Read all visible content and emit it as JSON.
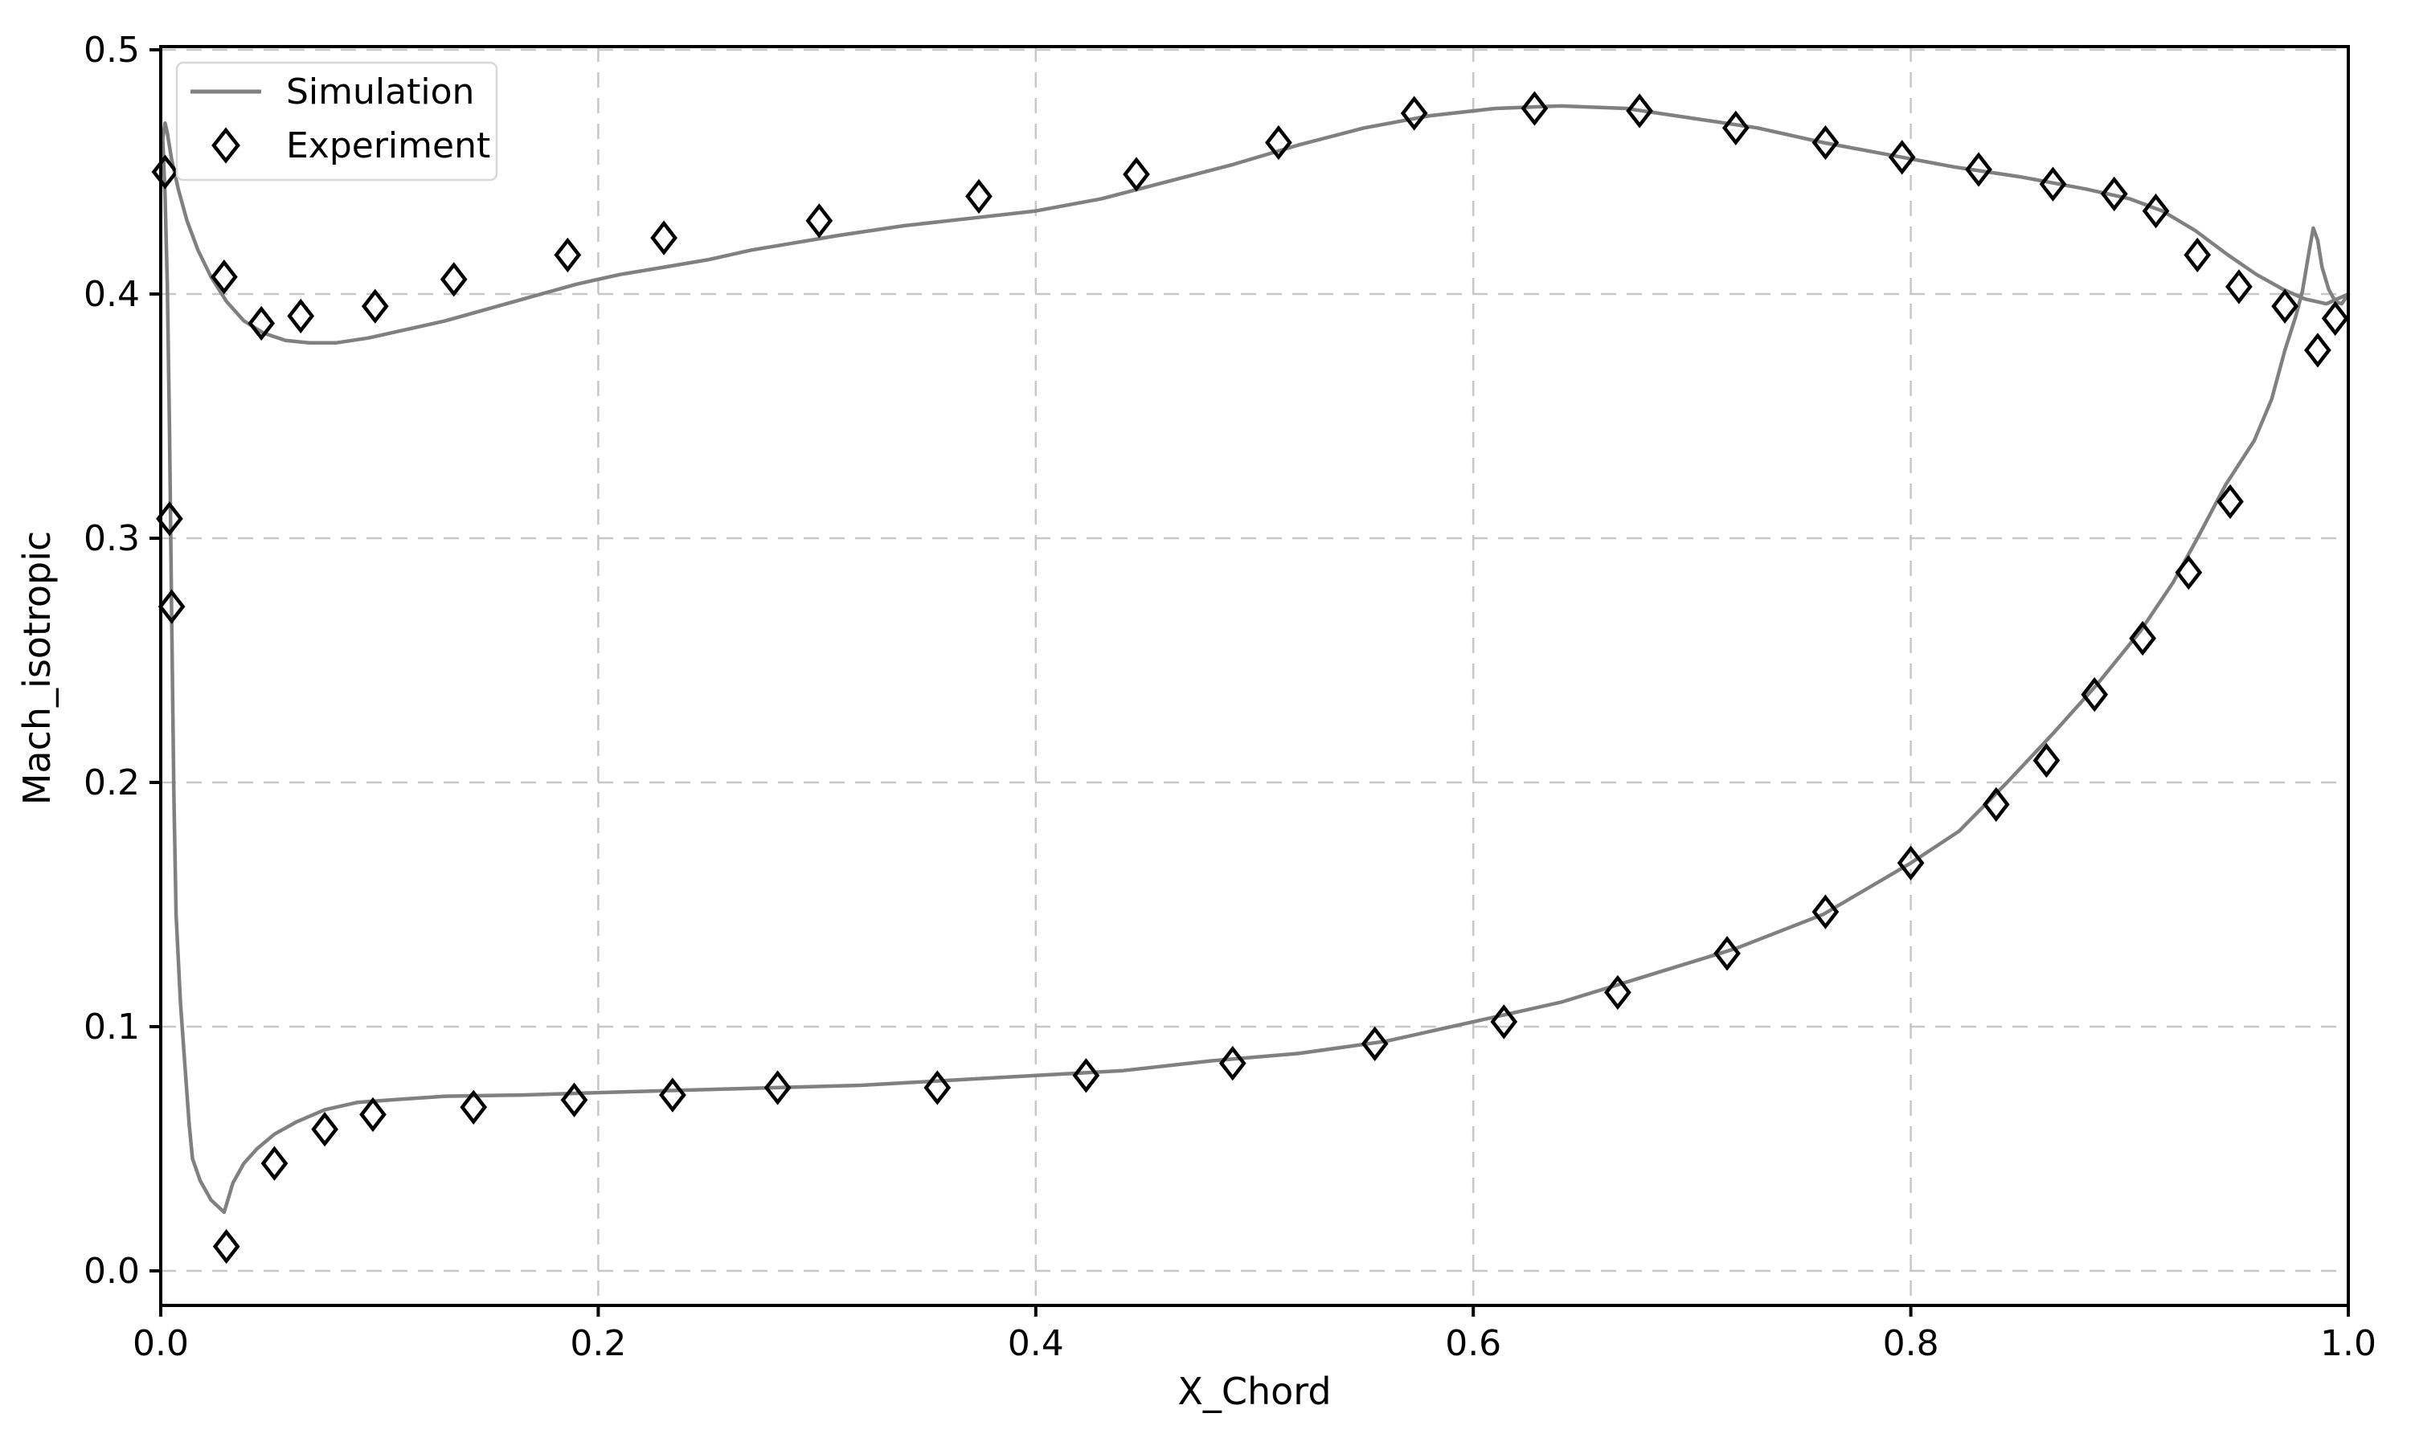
{
  "figure": {
    "background": "#ffffff"
  },
  "chart_data": {
    "type": "line",
    "title": "",
    "xlabel": "X_Chord",
    "ylabel": "Mach_isotropic",
    "xlim": [
      0.0,
      1.0
    ],
    "ylim": [
      -0.014,
      0.5
    ],
    "grid": true,
    "grid_color": "#c7c7c7",
    "x_ticks": [
      0.0,
      0.2,
      0.4,
      0.6,
      0.8,
      1.0
    ],
    "x_tick_labels": [
      "0.0",
      "0.2",
      "0.4",
      "0.6",
      "0.8",
      "1.0"
    ],
    "y_ticks": [
      0.0,
      0.1,
      0.2,
      0.3,
      0.4,
      0.5
    ],
    "y_tick_labels": [
      "0.0",
      "0.1",
      "0.2",
      "0.3",
      "0.4",
      "0.5"
    ],
    "legend": {
      "position": "upper-left",
      "entries": [
        {
          "label": "Simulation",
          "type": "line",
          "color": "#808080"
        },
        {
          "label": "Experiment",
          "type": "open-diamond-marker",
          "color": "#000000"
        }
      ]
    },
    "series": [
      {
        "name": "Simulation",
        "type": "line",
        "color": "#808080",
        "upper_surface": [
          [
            0.0,
            0.448
          ],
          [
            0.001,
            0.464
          ],
          [
            0.002,
            0.47
          ],
          [
            0.003,
            0.466
          ],
          [
            0.005,
            0.455
          ],
          [
            0.008,
            0.443
          ],
          [
            0.012,
            0.43
          ],
          [
            0.017,
            0.418
          ],
          [
            0.023,
            0.407
          ],
          [
            0.03,
            0.397
          ],
          [
            0.038,
            0.389
          ],
          [
            0.047,
            0.384
          ],
          [
            0.057,
            0.381
          ],
          [
            0.068,
            0.38
          ],
          [
            0.08,
            0.38
          ],
          [
            0.095,
            0.382
          ],
          [
            0.11,
            0.385
          ],
          [
            0.13,
            0.389
          ],
          [
            0.15,
            0.394
          ],
          [
            0.17,
            0.399
          ],
          [
            0.19,
            0.404
          ],
          [
            0.21,
            0.408
          ],
          [
            0.23,
            0.411
          ],
          [
            0.25,
            0.414
          ],
          [
            0.27,
            0.418
          ],
          [
            0.29,
            0.421
          ],
          [
            0.31,
            0.424
          ],
          [
            0.34,
            0.428
          ],
          [
            0.37,
            0.431
          ],
          [
            0.4,
            0.434
          ],
          [
            0.43,
            0.439
          ],
          [
            0.46,
            0.446
          ],
          [
            0.49,
            0.453
          ],
          [
            0.52,
            0.461
          ],
          [
            0.55,
            0.468
          ],
          [
            0.58,
            0.473
          ],
          [
            0.61,
            0.476
          ],
          [
            0.64,
            0.477
          ],
          [
            0.67,
            0.476
          ],
          [
            0.7,
            0.472
          ],
          [
            0.73,
            0.468
          ],
          [
            0.76,
            0.462
          ],
          [
            0.79,
            0.457
          ],
          [
            0.82,
            0.452
          ],
          [
            0.85,
            0.448
          ],
          [
            0.88,
            0.443
          ],
          [
            0.9,
            0.439
          ],
          [
            0.915,
            0.434
          ],
          [
            0.93,
            0.426
          ],
          [
            0.945,
            0.416
          ],
          [
            0.958,
            0.408
          ],
          [
            0.97,
            0.402
          ],
          [
            0.98,
            0.398
          ],
          [
            0.99,
            0.396
          ],
          [
            1.0,
            0.4
          ]
        ],
        "lower_surface": [
          [
            0.001,
            0.462
          ],
          [
            0.002,
            0.44
          ],
          [
            0.003,
            0.404
          ],
          [
            0.004,
            0.345
          ],
          [
            0.005,
            0.268
          ],
          [
            0.006,
            0.196
          ],
          [
            0.007,
            0.146
          ],
          [
            0.009,
            0.11
          ],
          [
            0.011,
            0.085
          ],
          [
            0.013,
            0.06
          ],
          [
            0.0145,
            0.046
          ],
          [
            0.018,
            0.037
          ],
          [
            0.023,
            0.029
          ],
          [
            0.029,
            0.024
          ],
          [
            0.033,
            0.036
          ],
          [
            0.038,
            0.044
          ],
          [
            0.044,
            0.05
          ],
          [
            0.052,
            0.056
          ],
          [
            0.062,
            0.061
          ],
          [
            0.075,
            0.066
          ],
          [
            0.09,
            0.069
          ],
          [
            0.105,
            0.07
          ],
          [
            0.13,
            0.0715
          ],
          [
            0.165,
            0.072
          ],
          [
            0.2,
            0.073
          ],
          [
            0.24,
            0.074
          ],
          [
            0.28,
            0.075
          ],
          [
            0.32,
            0.076
          ],
          [
            0.36,
            0.078
          ],
          [
            0.4,
            0.08
          ],
          [
            0.44,
            0.082
          ],
          [
            0.48,
            0.086
          ],
          [
            0.52,
            0.089
          ],
          [
            0.56,
            0.094
          ],
          [
            0.6,
            0.102
          ],
          [
            0.64,
            0.11
          ],
          [
            0.68,
            0.121
          ],
          [
            0.72,
            0.132
          ],
          [
            0.76,
            0.146
          ],
          [
            0.8,
            0.167
          ],
          [
            0.822,
            0.18
          ],
          [
            0.844,
            0.2
          ],
          [
            0.865,
            0.22
          ],
          [
            0.885,
            0.24
          ],
          [
            0.905,
            0.262
          ],
          [
            0.92,
            0.282
          ],
          [
            0.931,
            0.3
          ],
          [
            0.944,
            0.322
          ],
          [
            0.957,
            0.34
          ],
          [
            0.965,
            0.357
          ],
          [
            0.971,
            0.377
          ],
          [
            0.976,
            0.391
          ],
          [
            0.979,
            0.401
          ],
          [
            0.982,
            0.417
          ],
          [
            0.984,
            0.427
          ],
          [
            0.986,
            0.422
          ],
          [
            0.988,
            0.411
          ],
          [
            0.991,
            0.402
          ],
          [
            0.994,
            0.397
          ],
          [
            0.997,
            0.396
          ],
          [
            1.0,
            0.4
          ]
        ]
      },
      {
        "name": "Experiment",
        "type": "scatter",
        "marker": "open-diamond",
        "color": "#000000",
        "upper_surface": [
          [
            0.002,
            0.45
          ],
          [
            0.029,
            0.407
          ],
          [
            0.046,
            0.388
          ],
          [
            0.064,
            0.391
          ],
          [
            0.098,
            0.395
          ],
          [
            0.134,
            0.406
          ],
          [
            0.186,
            0.416
          ],
          [
            0.23,
            0.423
          ],
          [
            0.301,
            0.43
          ],
          [
            0.374,
            0.44
          ],
          [
            0.446,
            0.449
          ],
          [
            0.511,
            0.462
          ],
          [
            0.573,
            0.474
          ],
          [
            0.628,
            0.476
          ],
          [
            0.676,
            0.475
          ],
          [
            0.72,
            0.468
          ],
          [
            0.761,
            0.462
          ],
          [
            0.796,
            0.456
          ],
          [
            0.831,
            0.451
          ],
          [
            0.865,
            0.445
          ],
          [
            0.893,
            0.441
          ],
          [
            0.912,
            0.434
          ],
          [
            0.931,
            0.416
          ],
          [
            0.95,
            0.403
          ],
          [
            0.971,
            0.395
          ],
          [
            0.986,
            0.377
          ],
          [
            0.994,
            0.39
          ]
        ],
        "lower_surface": [
          [
            0.004,
            0.308
          ],
          [
            0.005,
            0.272
          ],
          [
            0.03,
            0.01
          ],
          [
            0.052,
            0.044
          ],
          [
            0.075,
            0.058
          ],
          [
            0.097,
            0.064
          ],
          [
            0.143,
            0.067
          ],
          [
            0.189,
            0.07
          ],
          [
            0.234,
            0.072
          ],
          [
            0.282,
            0.075
          ],
          [
            0.355,
            0.075
          ],
          [
            0.423,
            0.08
          ],
          [
            0.49,
            0.085
          ],
          [
            0.555,
            0.093
          ],
          [
            0.614,
            0.102
          ],
          [
            0.666,
            0.114
          ],
          [
            0.716,
            0.13
          ],
          [
            0.761,
            0.147
          ],
          [
            0.8,
            0.167
          ],
          [
            0.839,
            0.191
          ],
          [
            0.862,
            0.209
          ],
          [
            0.884,
            0.236
          ],
          [
            0.906,
            0.259
          ],
          [
            0.927,
            0.286
          ],
          [
            0.946,
            0.315
          ]
        ]
      }
    ]
  }
}
